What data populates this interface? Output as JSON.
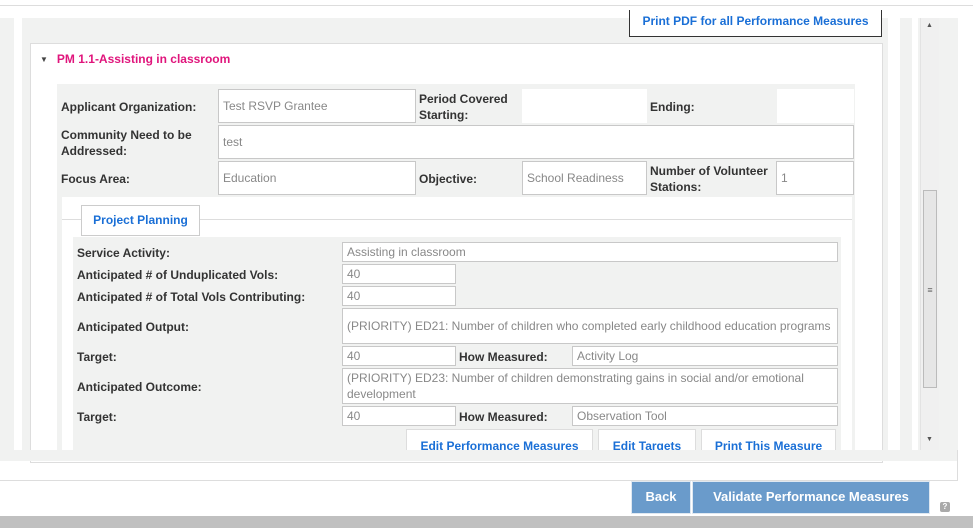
{
  "print_all_label": "Print PDF for all Performance Measures",
  "section": {
    "title": "PM 1.1-Assisting in classroom",
    "title_color": "#e0157c"
  },
  "header_form": {
    "applicant_org_label": "Applicant Organization:",
    "applicant_org_value": "Test RSVP Grantee",
    "period_label": "Period Covered Starting:",
    "period_value": "",
    "ending_label": "Ending:",
    "ending_value": "",
    "need_label": "Community Need to be Addressed:",
    "need_value": "test",
    "focus_label": "Focus Area:",
    "focus_value": "Education",
    "objective_label": "Objective:",
    "objective_value": "School Readiness",
    "stations_label": "Number of Volunteer Stations:",
    "stations_value": "1"
  },
  "planning": {
    "tab_label": "Project Planning",
    "service_activity_label": "Service Activity:",
    "service_activity_value": "Assisting in classroom",
    "unduplicated_label": "Anticipated # of Unduplicated Vols:",
    "unduplicated_value": "40",
    "total_vols_label": "Anticipated # of Total Vols Contributing:",
    "total_vols_value": "40",
    "output_label": "Anticipated Output:",
    "output_value": "(PRIORITY) ED21: Number of children who completed early childhood education programs",
    "target1_label": "Target:",
    "target1_value": "40",
    "how1_label": "How Measured:",
    "how1_value": "Activity Log",
    "outcome_label": "Anticipated Outcome:",
    "outcome_value": "(PRIORITY) ED23: Number of children demonstrating gains in social and/or emotional development",
    "target2_label": "Target:",
    "target2_value": "40",
    "how2_label": "How Measured:",
    "how2_value": "Observation Tool"
  },
  "actions": {
    "edit_pm": "Edit Performance Measures",
    "edit_targets": "Edit Targets",
    "print_measure": "Print This Measure"
  },
  "footer": {
    "back": "Back",
    "validate": "Validate Performance Measures",
    "help": "?"
  },
  "colors": {
    "button_blue": "#6a9bcb",
    "link_blue": "#1a6fd6"
  }
}
